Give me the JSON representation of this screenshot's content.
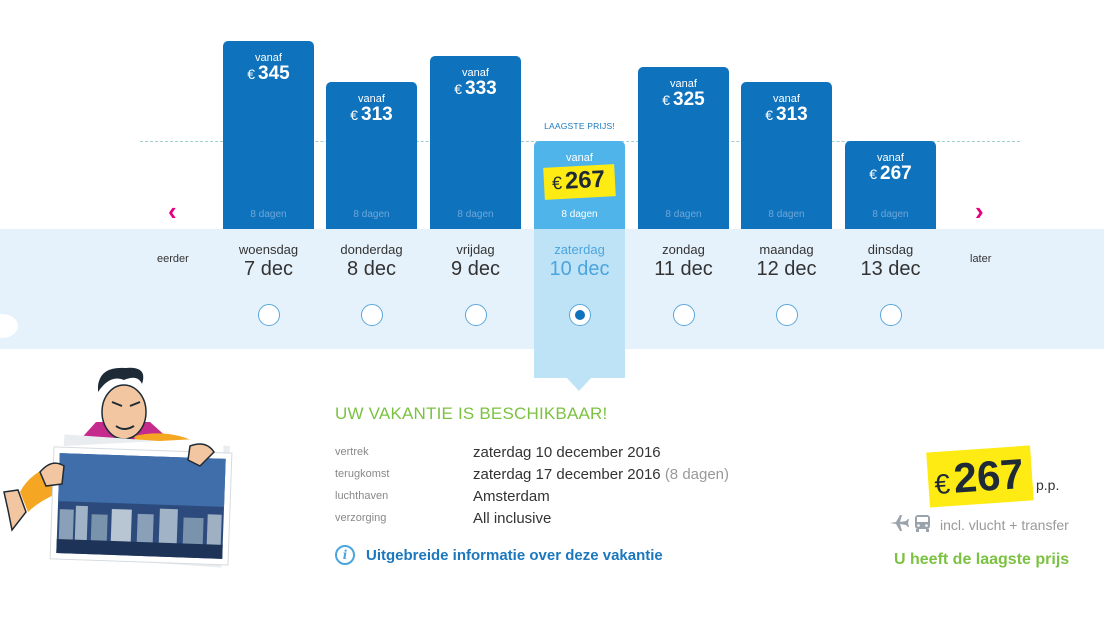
{
  "nav": {
    "earlier": "eerder",
    "later": "later",
    "prev_symbol": "‹",
    "next_symbol": "›"
  },
  "lowest_tag": "LAAGSTE PRIJS!",
  "currency": "€",
  "days": [
    {
      "weekday": "woensdag",
      "date": "7 dec",
      "from": "vanaf",
      "price": "345",
      "duration": "8 dagen",
      "selected": false
    },
    {
      "weekday": "donderdag",
      "date": "8 dec",
      "from": "vanaf",
      "price": "313",
      "duration": "8 dagen",
      "selected": false
    },
    {
      "weekday": "vrijdag",
      "date": "9 dec",
      "from": "vanaf",
      "price": "333",
      "duration": "8 dagen",
      "selected": false
    },
    {
      "weekday": "zaterdag",
      "date": "10 dec",
      "from": "vanaf",
      "price": "267",
      "duration": "8 dagen",
      "selected": true
    },
    {
      "weekday": "zondag",
      "date": "11 dec",
      "from": "vanaf",
      "price": "325",
      "duration": "8 dagen",
      "selected": false
    },
    {
      "weekday": "maandag",
      "date": "12 dec",
      "from": "vanaf",
      "price": "313",
      "duration": "8 dagen",
      "selected": false
    },
    {
      "weekday": "dinsdag",
      "date": "13 dec",
      "from": "vanaf",
      "price": "267",
      "duration": "8 dagen",
      "selected": false
    }
  ],
  "details": {
    "title": "UW VAKANTIE IS BESCHIKBAAR!",
    "rows": [
      {
        "label": "vertrek",
        "value": "zaterdag 10 december 2016",
        "extra": ""
      },
      {
        "label": "terugkomst",
        "value": "zaterdag 17 december 2016",
        "extra": "(8 dagen)"
      },
      {
        "label": "luchthaven",
        "value": "Amsterdam",
        "extra": ""
      },
      {
        "label": "verzorging",
        "value": "All inclusive",
        "extra": ""
      }
    ],
    "info_link": "Uitgebreide informatie over deze vakantie",
    "info_icon": "i"
  },
  "summary": {
    "currency": "€",
    "price": "267",
    "per_person": "p.p.",
    "includes": "incl. vlucht + transfer",
    "icons": [
      "plane-icon",
      "bus-icon"
    ],
    "lowest": "U heeft de laagste prijs"
  },
  "colors": {
    "bar": "#0f72bd",
    "selected": "#4fb4ea",
    "highlight": "#ffeb14",
    "green": "#7cc242",
    "nav": "#e6007e"
  }
}
